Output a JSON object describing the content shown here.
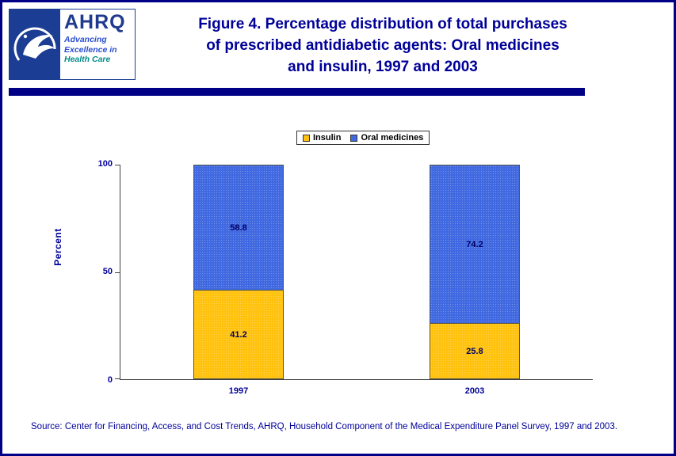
{
  "header": {
    "title_lines": [
      "Figure 4. Percentage distribution of total purchases",
      "of prescribed antidiabetic agents: Oral medicines",
      "and insulin, 1997 and 2003"
    ],
    "logo": {
      "ahrq_acronym": "AHRQ",
      "tagline_line1": "Advancing Excellence in",
      "tagline_line2": "Health Care"
    }
  },
  "chart_data": {
    "type": "bar",
    "stacked": true,
    "categories": [
      "1997",
      "2003"
    ],
    "series": [
      {
        "name": "Insulin",
        "color": "#FFC20E",
        "values": [
          41.2,
          25.8
        ]
      },
      {
        "name": "Oral medicines",
        "color": "#4068E0",
        "values": [
          58.8,
          74.2
        ]
      }
    ],
    "title": "Figure 4. Percentage distribution of total purchases of prescribed antidiabetic agents: Oral medicines and insulin, 1997 and 2003",
    "xlabel": "",
    "ylabel": "Percent",
    "ylim": [
      0,
      100
    ],
    "yticks": [
      0,
      50,
      100
    ],
    "legend_position": "top",
    "grid": false
  },
  "footer": {
    "source": "Source: Center for Financing, Access, and Cost Trends, AHRQ, Household Component of the Medical Expenditure Panel Survey, 1997 and 2003."
  }
}
